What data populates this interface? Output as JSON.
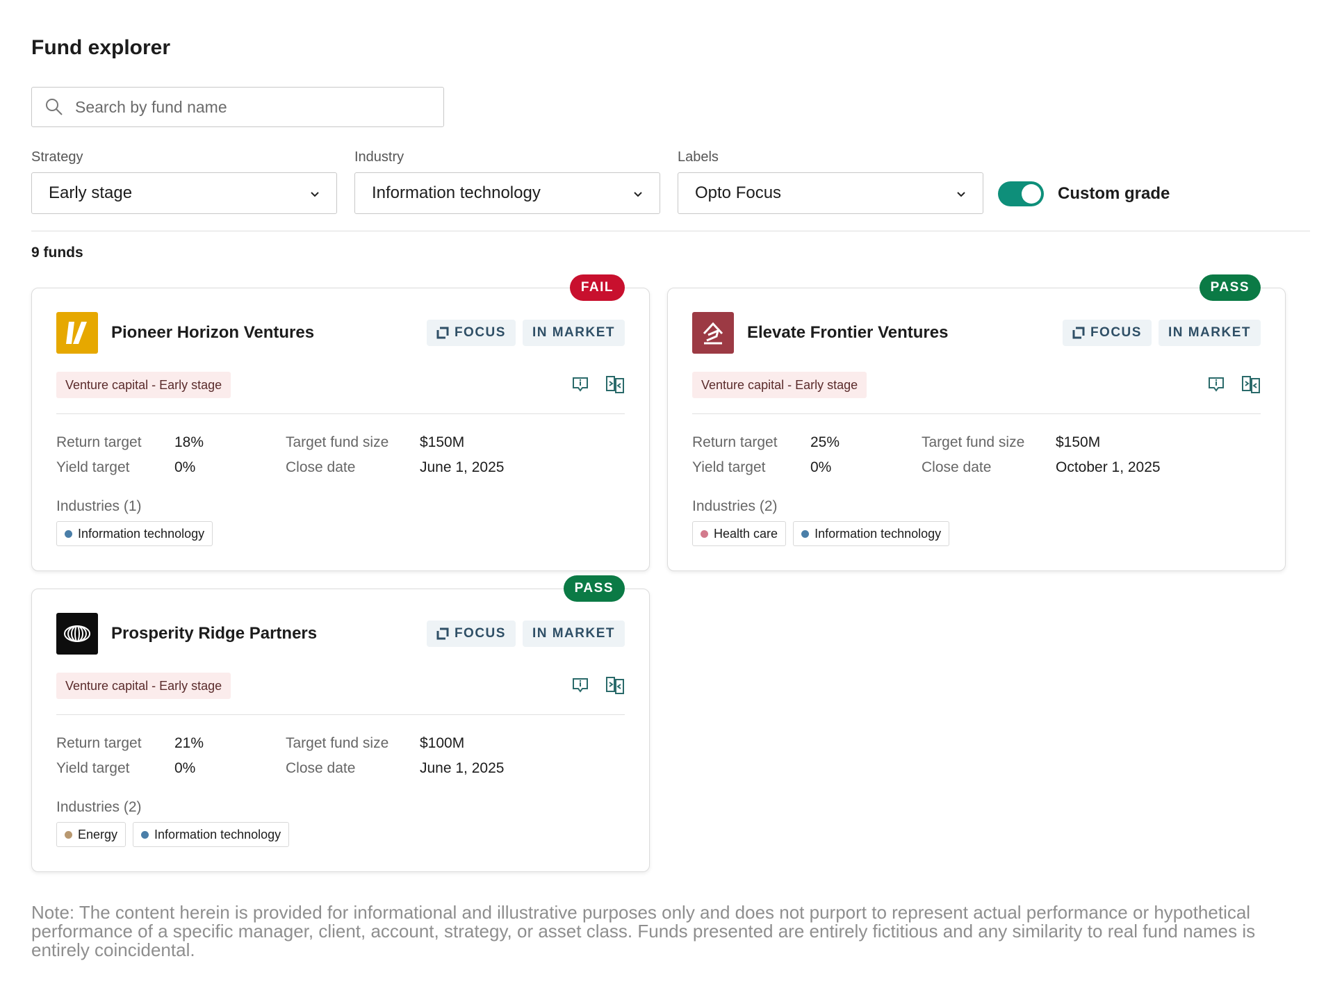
{
  "page": {
    "title": "Fund explorer",
    "search_placeholder": "Search by fund name",
    "search_icon": "search-icon",
    "filters": [
      {
        "label": "Strategy",
        "value": "Early stage"
      },
      {
        "label": "Industry",
        "value": "Information technology"
      },
      {
        "label": "Labels",
        "value": "Opto Focus"
      }
    ],
    "toggle": {
      "label": "Custom grade",
      "on": true,
      "color": "#0e8f7a"
    },
    "count": "9 funds"
  },
  "colors": {
    "fail": "#c8102e",
    "pass": "#0b7a45"
  },
  "funds": [
    {
      "grade": "FAIL",
      "name": "Pioneer Horizon Ventures",
      "logo_icon": "pioneer-logo-icon",
      "tag_focus": "FOCUS",
      "tag_market": "IN MARKET",
      "strategy": "Venture capital - Early stage",
      "return_label": "Return target",
      "return_value": "18%",
      "yield_label": "Yield target",
      "yield_value": "0%",
      "size_label": "Target fund size",
      "size_value": "$150M",
      "close_label": "Close date",
      "close_value": "June 1, 2025",
      "industries_title": "Industries (1)",
      "industries": [
        {
          "name": "Information technology",
          "color": "#4a7ea8"
        }
      ]
    },
    {
      "grade": "PASS",
      "name": "Elevate Frontier Ventures",
      "logo_icon": "elevate-logo-icon",
      "tag_focus": "FOCUS",
      "tag_market": "IN MARKET",
      "strategy": "Venture capital - Early stage",
      "return_label": "Return target",
      "return_value": "25%",
      "yield_label": "Yield target",
      "yield_value": "0%",
      "size_label": "Target fund size",
      "size_value": "$150M",
      "close_label": "Close date",
      "close_value": "October 1, 2025",
      "industries_title": "Industries (2)",
      "industries": [
        {
          "name": "Health care",
          "color": "#d27a8c"
        },
        {
          "name": "Information technology",
          "color": "#4a7ea8"
        }
      ]
    },
    {
      "grade": "PASS",
      "name": "Prosperity Ridge Partners",
      "logo_icon": "prosperity-logo-icon",
      "tag_focus": "FOCUS",
      "tag_market": "IN MARKET",
      "strategy": "Venture capital - Early stage",
      "return_label": "Return target",
      "return_value": "21%",
      "yield_label": "Yield target",
      "yield_value": "0%",
      "size_label": "Target fund size",
      "size_value": "$100M",
      "close_label": "Close date",
      "close_value": "June 1, 2025",
      "industries_title": "Industries (2)",
      "industries": [
        {
          "name": "Energy",
          "color": "#b89870"
        },
        {
          "name": "Information technology",
          "color": "#4a7ea8"
        }
      ]
    }
  ],
  "note": "Note: The content herein is provided for informational and illustrative purposes only and does not purport to represent actual performance or hypothetical performance of a specific manager, client, account, strategy, or asset class. Funds presented are entirely fictitious and any similarity to real fund names is entirely coincidental."
}
